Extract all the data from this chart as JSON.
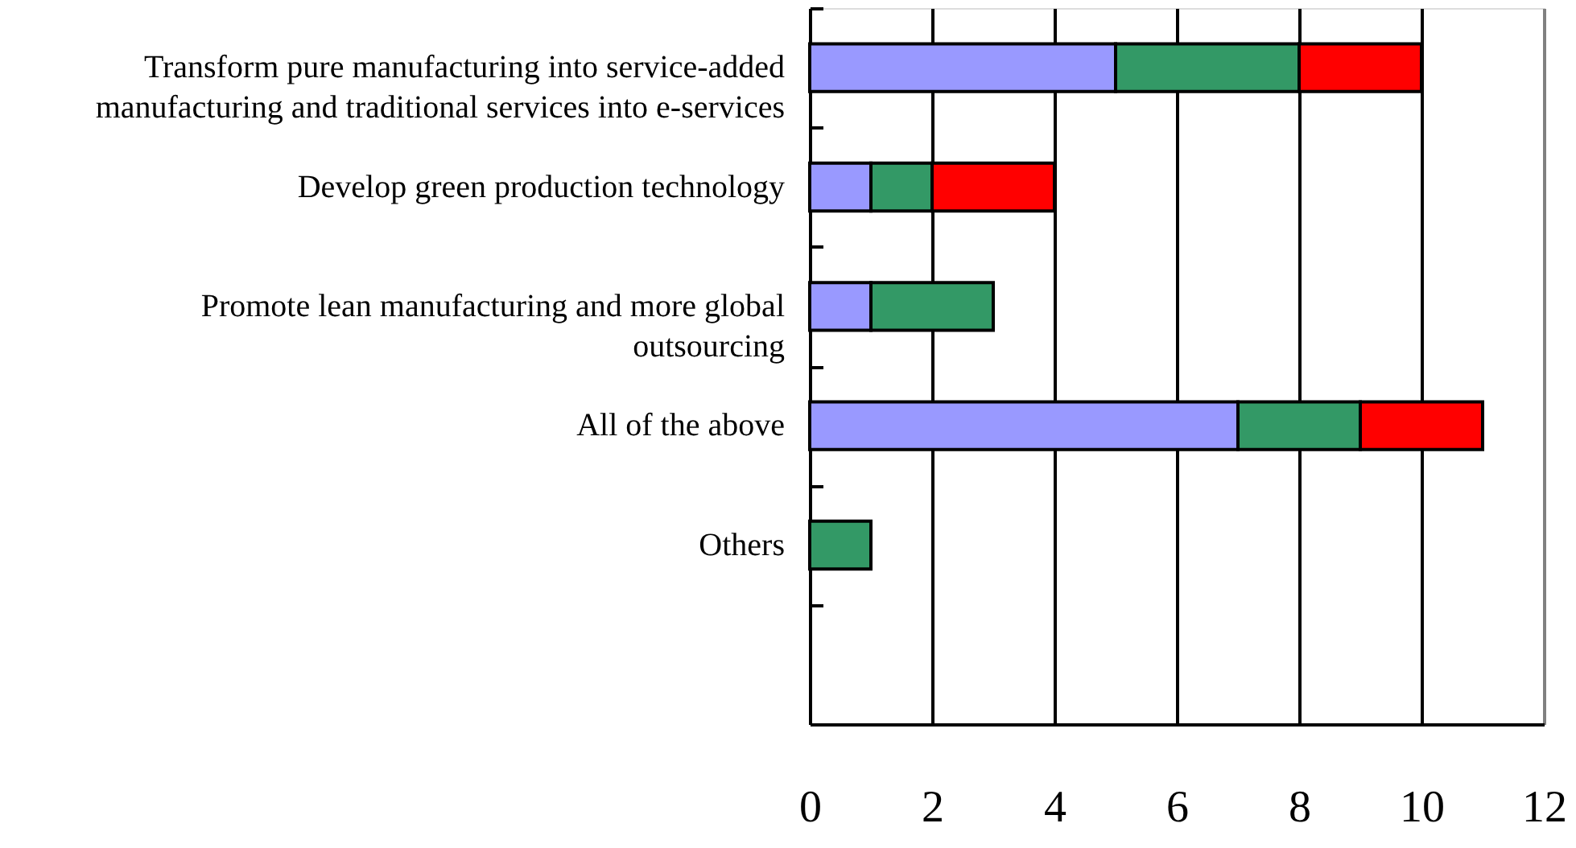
{
  "chart_data": {
    "type": "bar",
    "orientation": "horizontal",
    "stacked": true,
    "categories": [
      "Transform pure manufacturing into service-added manufacturing and traditional services into e-services",
      "Develop green production technology",
      "Promote lean manufacturing and more global outsourcing",
      "All of the above",
      "Others",
      null
    ],
    "series": [
      {
        "color": "#9999ff",
        "values": [
          5,
          1,
          1,
          7,
          0,
          null
        ]
      },
      {
        "color": "#339966",
        "values": [
          3,
          1,
          2,
          2,
          1,
          null
        ]
      },
      {
        "color": "#ff0000",
        "values": [
          2,
          2,
          0,
          2,
          0,
          null
        ]
      }
    ],
    "xlim": [
      0,
      12
    ],
    "xticks": [
      0,
      2,
      4,
      6,
      8,
      10,
      12
    ],
    "grid": "x"
  }
}
